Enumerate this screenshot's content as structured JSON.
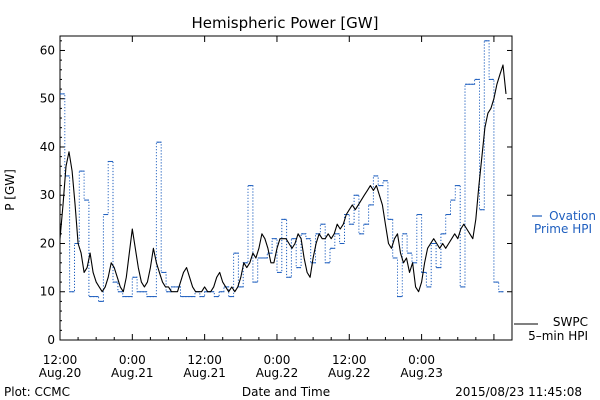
{
  "chart_data": {
    "type": "line",
    "title": "Hemispheric Power [GW]",
    "xlabel": "Date and Time",
    "ylabel": "P [GW]",
    "ylim": [
      0,
      63
    ],
    "xlim_hours": [
      0,
      75
    ],
    "y_ticks": [
      0,
      10,
      20,
      30,
      40,
      50,
      60
    ],
    "x_ticks": [
      {
        "hour": 0,
        "time": "12:00",
        "date": "Aug.20"
      },
      {
        "hour": 12,
        "time": "0:00",
        "date": "Aug.21"
      },
      {
        "hour": 24,
        "time": "12:00",
        "date": "Aug.21"
      },
      {
        "hour": 36,
        "time": "0:00",
        "date": "Aug.22"
      },
      {
        "hour": 48,
        "time": "12:00",
        "date": "Aug.22"
      },
      {
        "hour": 60,
        "time": "0:00",
        "date": "Aug.23"
      }
    ],
    "series": [
      {
        "name": "SWPC 5-min HPI",
        "style": "solid",
        "color": "#000000",
        "points": [
          [
            0,
            21
          ],
          [
            0.5,
            28
          ],
          [
            1,
            36
          ],
          [
            1.5,
            39
          ],
          [
            2,
            35
          ],
          [
            2.5,
            28
          ],
          [
            3,
            20
          ],
          [
            3.5,
            18
          ],
          [
            4,
            14
          ],
          [
            4.5,
            15
          ],
          [
            5,
            18
          ],
          [
            5.5,
            14
          ],
          [
            6,
            12
          ],
          [
            6.5,
            11
          ],
          [
            7,
            10
          ],
          [
            7.5,
            11
          ],
          [
            8,
            13
          ],
          [
            8.5,
            16
          ],
          [
            9,
            15
          ],
          [
            9.5,
            13
          ],
          [
            10,
            11
          ],
          [
            10.5,
            10
          ],
          [
            11,
            13
          ],
          [
            11.5,
            18
          ],
          [
            12,
            23
          ],
          [
            12.5,
            19
          ],
          [
            13,
            15
          ],
          [
            13.5,
            12
          ],
          [
            14,
            11
          ],
          [
            14.5,
            12
          ],
          [
            15,
            15
          ],
          [
            15.5,
            19
          ],
          [
            16,
            16
          ],
          [
            16.5,
            14
          ],
          [
            17,
            12
          ],
          [
            17.5,
            11
          ],
          [
            18,
            11
          ],
          [
            18.5,
            10
          ],
          [
            19,
            10
          ],
          [
            19.5,
            10
          ],
          [
            20,
            12
          ],
          [
            20.5,
            14
          ],
          [
            21,
            15
          ],
          [
            21.5,
            13
          ],
          [
            22,
            11
          ],
          [
            22.5,
            10
          ],
          [
            23,
            10
          ],
          [
            23.5,
            10
          ],
          [
            24,
            11
          ],
          [
            24.5,
            10
          ],
          [
            25,
            10
          ],
          [
            25.5,
            11
          ],
          [
            26,
            13
          ],
          [
            26.5,
            14
          ],
          [
            27,
            12
          ],
          [
            27.5,
            11
          ],
          [
            28,
            10
          ],
          [
            28.5,
            11
          ],
          [
            29,
            10
          ],
          [
            29.5,
            11
          ],
          [
            30,
            13
          ],
          [
            30.5,
            16
          ],
          [
            31,
            15
          ],
          [
            31.5,
            16
          ],
          [
            32,
            18
          ],
          [
            32.5,
            17
          ],
          [
            33,
            19
          ],
          [
            33.5,
            22
          ],
          [
            34,
            21
          ],
          [
            34.5,
            19
          ],
          [
            35,
            16
          ],
          [
            35.5,
            16
          ],
          [
            36,
            19
          ],
          [
            36.5,
            21
          ],
          [
            37,
            21
          ],
          [
            37.5,
            21
          ],
          [
            38,
            20
          ],
          [
            38.5,
            19
          ],
          [
            39,
            20
          ],
          [
            39.5,
            22
          ],
          [
            40,
            21
          ],
          [
            40.5,
            17
          ],
          [
            41,
            14
          ],
          [
            41.5,
            13
          ],
          [
            42,
            17
          ],
          [
            42.5,
            20
          ],
          [
            43,
            22
          ],
          [
            43.5,
            21
          ],
          [
            44,
            21
          ],
          [
            44.5,
            22
          ],
          [
            45,
            21
          ],
          [
            45.5,
            22
          ],
          [
            46,
            24
          ],
          [
            46.5,
            23
          ],
          [
            47,
            24
          ],
          [
            47.5,
            26
          ],
          [
            48,
            27
          ],
          [
            48.5,
            28
          ],
          [
            49,
            27
          ],
          [
            49.5,
            28
          ],
          [
            50,
            29
          ],
          [
            50.5,
            30
          ],
          [
            51,
            31
          ],
          [
            51.5,
            32
          ],
          [
            52,
            31
          ],
          [
            52.5,
            32
          ],
          [
            53,
            30
          ],
          [
            53.5,
            28
          ],
          [
            54,
            24
          ],
          [
            54.5,
            20
          ],
          [
            55,
            19
          ],
          [
            55.5,
            21
          ],
          [
            56,
            22
          ],
          [
            56.5,
            18
          ],
          [
            57,
            16
          ],
          [
            57.5,
            17
          ],
          [
            58,
            14
          ],
          [
            58.5,
            16
          ],
          [
            59,
            11
          ],
          [
            59.5,
            10
          ],
          [
            60,
            12
          ],
          [
            60.5,
            16
          ],
          [
            61,
            19
          ],
          [
            61.5,
            20
          ],
          [
            62,
            21
          ],
          [
            62.5,
            20
          ],
          [
            63,
            19
          ],
          [
            63.5,
            20
          ],
          [
            64,
            19
          ],
          [
            64.5,
            20
          ],
          [
            65,
            21
          ],
          [
            65.5,
            22
          ],
          [
            66,
            21
          ],
          [
            66.5,
            23
          ],
          [
            67,
            24
          ],
          [
            67.5,
            23
          ],
          [
            68,
            22
          ],
          [
            68.5,
            21
          ],
          [
            69,
            25
          ],
          [
            69.5,
            32
          ],
          [
            70,
            38
          ],
          [
            70.5,
            44
          ],
          [
            71,
            47
          ],
          [
            71.5,
            48
          ],
          [
            72,
            50
          ],
          [
            72.5,
            53
          ],
          [
            73,
            55
          ],
          [
            73.5,
            57
          ],
          [
            74,
            51
          ]
        ]
      },
      {
        "name": "Ovation Prime HPI",
        "style": "dashed-step",
        "color": "#1f5fbf",
        "points": [
          [
            0,
            51
          ],
          [
            0.8,
            34
          ],
          [
            1.6,
            10
          ],
          [
            2.4,
            20
          ],
          [
            3.2,
            35
          ],
          [
            4,
            29
          ],
          [
            4.8,
            9
          ],
          [
            6.4,
            8
          ],
          [
            7.2,
            26
          ],
          [
            8,
            37
          ],
          [
            8.8,
            12
          ],
          [
            9.6,
            10
          ],
          [
            10.4,
            9
          ],
          [
            12,
            13
          ],
          [
            12.8,
            10
          ],
          [
            14.4,
            9
          ],
          [
            16,
            41
          ],
          [
            16.8,
            14
          ],
          [
            17.6,
            10
          ],
          [
            18.4,
            11
          ],
          [
            19.2,
            11
          ],
          [
            20,
            9
          ],
          [
            22.4,
            10
          ],
          [
            23.2,
            9
          ],
          [
            24,
            10
          ],
          [
            25.6,
            9
          ],
          [
            26.4,
            10
          ],
          [
            27.2,
            11
          ],
          [
            28,
            9
          ],
          [
            28.8,
            18
          ],
          [
            29.6,
            11
          ],
          [
            30.4,
            16
          ],
          [
            31.2,
            32
          ],
          [
            32,
            12
          ],
          [
            32.8,
            17
          ],
          [
            34.4,
            18
          ],
          [
            35.2,
            21
          ],
          [
            36,
            14
          ],
          [
            36.8,
            25
          ],
          [
            37.6,
            13
          ],
          [
            38.4,
            21
          ],
          [
            39.2,
            15
          ],
          [
            40,
            22
          ],
          [
            40.8,
            21
          ],
          [
            41.6,
            16
          ],
          [
            42.4,
            22
          ],
          [
            43.2,
            24
          ],
          [
            44,
            16
          ],
          [
            44.8,
            19
          ],
          [
            45.6,
            22
          ],
          [
            46.4,
            20
          ],
          [
            47.2,
            26
          ],
          [
            48,
            24
          ],
          [
            48.8,
            30
          ],
          [
            49.6,
            22
          ],
          [
            50.4,
            24
          ],
          [
            51.2,
            28
          ],
          [
            52,
            34
          ],
          [
            52.8,
            32
          ],
          [
            53.6,
            33
          ],
          [
            54.4,
            25
          ],
          [
            55.2,
            17
          ],
          [
            56,
            9
          ],
          [
            56.8,
            22
          ],
          [
            57.6,
            18
          ],
          [
            58.4,
            16
          ],
          [
            59.2,
            26
          ],
          [
            60,
            14
          ],
          [
            60.8,
            11
          ],
          [
            61.6,
            20
          ],
          [
            62.4,
            15
          ],
          [
            63.2,
            22
          ],
          [
            64,
            26
          ],
          [
            64.8,
            29
          ],
          [
            65.6,
            32
          ],
          [
            66.4,
            11
          ],
          [
            67.2,
            53
          ],
          [
            68.8,
            54
          ],
          [
            69.6,
            27
          ],
          [
            70.4,
            62
          ],
          [
            71.2,
            54
          ],
          [
            72,
            12
          ],
          [
            72.8,
            10
          ]
        ]
      }
    ]
  },
  "page": {
    "title": "Hemispheric Power [GW]",
    "ylabel": "P [GW]",
    "xlabel": "Date and Time",
    "footer_left": "Plot: CCMC",
    "footer_right": "2015/08/23 11:45:08",
    "legend_ovation_line1": "Ovation",
    "legend_ovation_line2": "Prime HPI",
    "legend_swpc_line1": "SWPC",
    "legend_swpc_line2": "5–min HPI"
  },
  "colors": {
    "ovation": "#1f5fbf",
    "swpc": "#000000"
  }
}
